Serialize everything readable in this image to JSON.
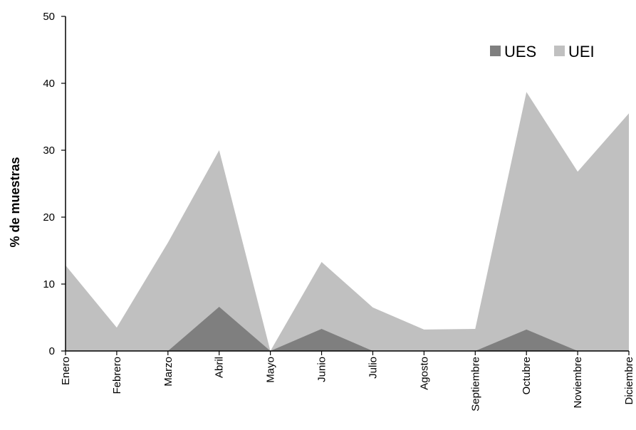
{
  "chart_data": {
    "type": "area",
    "title": "",
    "xlabel": "",
    "ylabel": "% de muestras",
    "ylim": [
      0,
      50
    ],
    "yticks": [
      0,
      10,
      20,
      30,
      40,
      50
    ],
    "grid": false,
    "legend_position": "top-right",
    "stacked": false,
    "categories": [
      "Enero",
      "Febrero",
      "Marzo",
      "Abril",
      "Mayo",
      "Junio",
      "Julio",
      "Agosto",
      "Septiembre",
      "Octubre",
      "Noviembre",
      "Diciembre"
    ],
    "series": [
      {
        "name": "UEI",
        "color": "#c0c0c0",
        "values": [
          12.8,
          3.5,
          16.2,
          30.0,
          0.0,
          13.3,
          6.5,
          3.2,
          3.3,
          38.7,
          26.8,
          35.5
        ]
      },
      {
        "name": "UES",
        "color": "#7f7f7f",
        "values": [
          0.0,
          0.0,
          0.0,
          6.6,
          0.0,
          3.3,
          0.0,
          0.0,
          0.0,
          3.2,
          0.0,
          0.0
        ]
      }
    ]
  }
}
